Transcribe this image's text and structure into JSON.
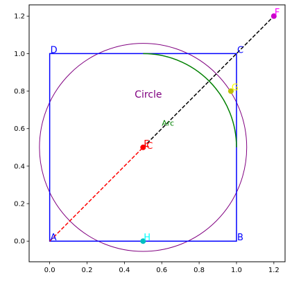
{
  "chart_data": {
    "type": "geometry",
    "xlim": [
      -0.11,
      1.26
    ],
    "ylim": [
      -0.11,
      1.26
    ],
    "x_ticks": [
      0.0,
      0.2,
      0.4,
      0.6,
      0.8,
      1.0,
      1.2
    ],
    "y_ticks": [
      0.0,
      0.2,
      0.4,
      0.6,
      0.8,
      1.0,
      1.2
    ],
    "x_tick_labels": [
      "0.0",
      "0.2",
      "0.4",
      "0.6",
      "0.8",
      "1.0",
      "1.2"
    ],
    "y_tick_labels": [
      "0.0",
      "0.2",
      "0.4",
      "0.6",
      "0.8",
      "1.0",
      "1.2"
    ],
    "grid": false,
    "square": {
      "vertices": [
        {
          "label": "A",
          "x": 0.0,
          "y": 0.0
        },
        {
          "label": "B",
          "x": 1.0,
          "y": 0.0
        },
        {
          "label": "C",
          "x": 1.0,
          "y": 1.0
        },
        {
          "label": "D",
          "x": 0.0,
          "y": 1.0
        }
      ],
      "color": "#0000ff",
      "label_color": "#0000ff"
    },
    "circle": {
      "center": [
        0.5,
        0.5
      ],
      "radius": 0.5547,
      "color": "#800080",
      "label": "Circle",
      "label_at": [
        0.455,
        0.765
      ]
    },
    "arc": {
      "center": [
        0.5,
        0.5
      ],
      "radius": 0.5,
      "start_deg": 0,
      "end_deg": 90,
      "color": "#008000",
      "label": "Arc",
      "label_at": [
        0.6,
        0.615
      ]
    },
    "lines": [
      {
        "from": [
          0.0,
          0.0
        ],
        "to": [
          0.5,
          0.5
        ],
        "color": "#ff0000",
        "style": "dashed"
      },
      {
        "from": [
          0.5,
          0.5
        ],
        "to": [
          1.2,
          1.2
        ],
        "color": "#000000",
        "style": "dashed"
      }
    ],
    "points": [
      {
        "label": "E",
        "x": 0.5,
        "y": 0.5,
        "color": "#ff0000",
        "label_color": "#ff0000"
      },
      {
        "label": "F",
        "x": 1.2,
        "y": 1.2,
        "color": "#cc00cc",
        "label_color": "#ff00ff"
      },
      {
        "label": "G",
        "x": 0.97,
        "y": 0.8,
        "color": "#bfbf00",
        "label_color": "#ffff00"
      },
      {
        "label": "H",
        "x": 0.5,
        "y": 0.0,
        "color": "#00bfbf",
        "label_color": "#00ffff"
      }
    ],
    "extra_labels": [
      {
        "text": "C",
        "x": 0.5,
        "y": 0.5,
        "color": "#ff0000"
      }
    ]
  }
}
